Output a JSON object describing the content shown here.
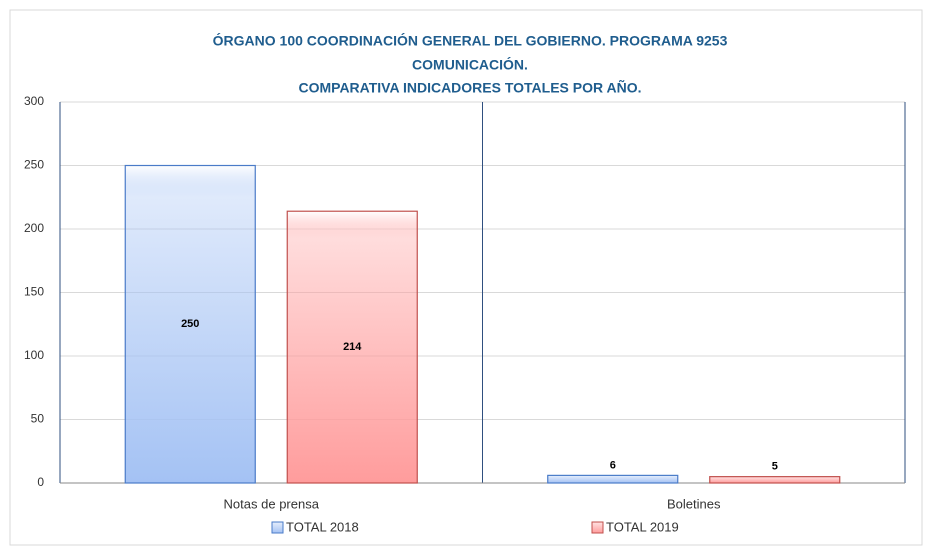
{
  "chart_data": {
    "type": "bar",
    "title": [
      "ÓRGANO 100 COORDINACIÓN GENERAL DEL GOBIERNO. PROGRAMA 9253",
      "COMUNICACIÓN.",
      "COMPARATIVA INDICADORES TOTALES POR AÑO."
    ],
    "categories": [
      "Notas de prensa",
      "Boletines"
    ],
    "series": [
      {
        "name": "TOTAL 2018",
        "color": "#a4c2f4",
        "values": [
          250,
          6
        ]
      },
      {
        "name": "TOTAL 2019",
        "color": "#ff9c9c",
        "values": [
          214,
          5
        ]
      }
    ],
    "ylim": [
      0,
      300
    ],
    "yticks": [
      0,
      50,
      100,
      150,
      200,
      250,
      300
    ],
    "grid": true,
    "legend": "bottom"
  }
}
